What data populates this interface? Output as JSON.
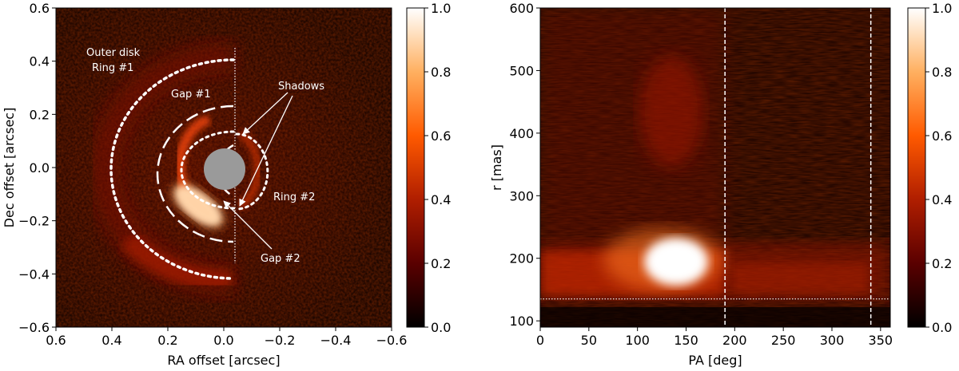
{
  "chart_data": [
    {
      "type": "heatmap",
      "xlabel": "RA offset [arcsec]",
      "ylabel": "Dec offset [arcsec]",
      "xlim": [
        0.6,
        -0.6
      ],
      "ylim": [
        -0.6,
        0.6
      ],
      "xticks": [
        "0.6",
        "0.4",
        "0.2",
        "0.0",
        "−0.2",
        "−0.4",
        "−0.6"
      ],
      "yticks": [
        "0.6",
        "0.4",
        "0.2",
        "0.0",
        "−0.2",
        "−0.4",
        "−0.6"
      ],
      "colorbar": {
        "range": [
          0,
          1
        ],
        "ticks": [
          "1.0",
          "0.8",
          "0.6",
          "0.4",
          "0.2",
          "0.0"
        ]
      },
      "colormap": [
        "#000000",
        "#5a0000",
        "#b01e00",
        "#ff5a00",
        "#ffb060",
        "#ffffff"
      ],
      "annotations": {
        "outer_disk": "Outer disk",
        "ring1": "Ring #1",
        "gap1": "Gap #1",
        "shadows": "Shadows",
        "ring2": "Ring #2",
        "gap2": "Gap #2"
      }
    },
    {
      "type": "heatmap",
      "xlabel": "PA [deg]",
      "ylabel": "r [mas]",
      "xlim": [
        0,
        360
      ],
      "ylim": [
        90,
        600
      ],
      "xticks": [
        "0",
        "50",
        "100",
        "150",
        "200",
        "250",
        "300",
        "350"
      ],
      "yticks": [
        "600",
        "500",
        "400",
        "300",
        "200",
        "100"
      ],
      "vlines": [
        190,
        340
      ],
      "hline": 135,
      "colorbar": {
        "range": [
          0,
          1
        ],
        "ticks": [
          "1.0",
          "0.8",
          "0.6",
          "0.4",
          "0.2",
          "0.0"
        ]
      }
    }
  ]
}
